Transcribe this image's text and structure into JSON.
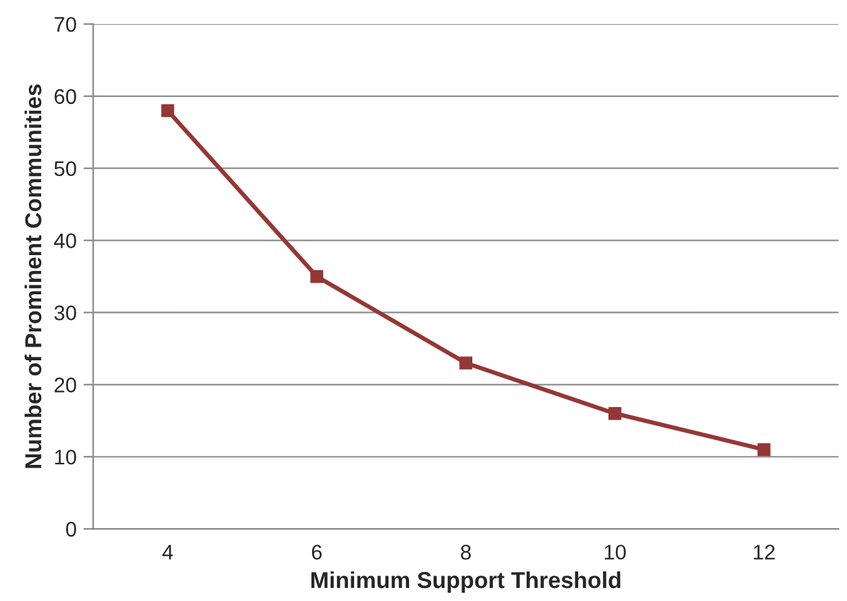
{
  "chart_data": {
    "type": "line",
    "xlabel": "Minimum Support Threshold",
    "ylabel": "Number of Prominent Communities",
    "categories": [
      "4",
      "6",
      "8",
      "10",
      "12"
    ],
    "series": [
      {
        "color": "#953735",
        "values": [
          58,
          35,
          23,
          16,
          11
        ]
      }
    ],
    "ylim": [
      0,
      70
    ],
    "yticks": [
      0,
      10,
      20,
      30,
      40,
      50,
      60,
      70
    ],
    "grid": "y",
    "marker": "square",
    "line_style": "solid",
    "legend": false
  }
}
